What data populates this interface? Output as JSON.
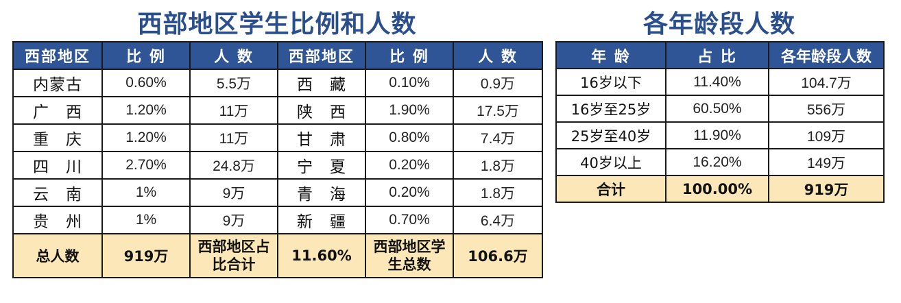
{
  "west": {
    "title": "西部地区学生比例和人数",
    "headers": [
      "西部地区",
      "比 例",
      "人 数",
      "西部地区",
      "比 例",
      "人 数"
    ],
    "rows": [
      {
        "r1": "内蒙古",
        "p1": "0.60%",
        "n1": "5.5万",
        "r2": "西　藏",
        "p2": "0.10%",
        "n2": "0.9万"
      },
      {
        "r1": "广　西",
        "p1": "1.20%",
        "n1": "11万",
        "r2": "陕　西",
        "p2": "1.90%",
        "n2": "17.5万"
      },
      {
        "r1": "重　庆",
        "p1": "1.20%",
        "n1": "11万",
        "r2": "甘　肃",
        "p2": "0.80%",
        "n2": "7.4万"
      },
      {
        "r1": "四　川",
        "p1": "2.70%",
        "n1": "24.8万",
        "r2": "宁　夏",
        "p2": "0.20%",
        "n2": "1.8万"
      },
      {
        "r1": "云　南",
        "p1": "1%",
        "n1": "9万",
        "r2": "青　海",
        "p2": "0.20%",
        "n2": "1.8万"
      },
      {
        "r1": "贵　州",
        "p1": "1%",
        "n1": "9万",
        "r2": "新　疆",
        "p2": "0.70%",
        "n2": "6.4万"
      }
    ],
    "total": {
      "label1": "总人数",
      "value1": "919万",
      "label2": "西部地区占比合计",
      "value2": "11.60%",
      "label3": "西部地区学生总数",
      "value3": "106.6万"
    }
  },
  "age": {
    "title": "各年龄段人数",
    "headers": [
      "年 龄",
      "占 比",
      "各年龄段人数"
    ],
    "rows": [
      {
        "age": "16岁以下",
        "pct": "11.40%",
        "count": "104.7万"
      },
      {
        "age": "16岁至25岁",
        "pct": "60.50%",
        "count": "556万"
      },
      {
        "age": "25岁至40岁",
        "pct": "11.90%",
        "count": "109万"
      },
      {
        "age": "40岁以上",
        "pct": "16.20%",
        "count": "149万"
      }
    ],
    "total": {
      "label": "合计",
      "pct": "100.00%",
      "count": "919万"
    }
  },
  "colors": {
    "title": "#2a4f8c",
    "header_bg": "#2f5597",
    "total_bg": "#fbe7b8"
  }
}
